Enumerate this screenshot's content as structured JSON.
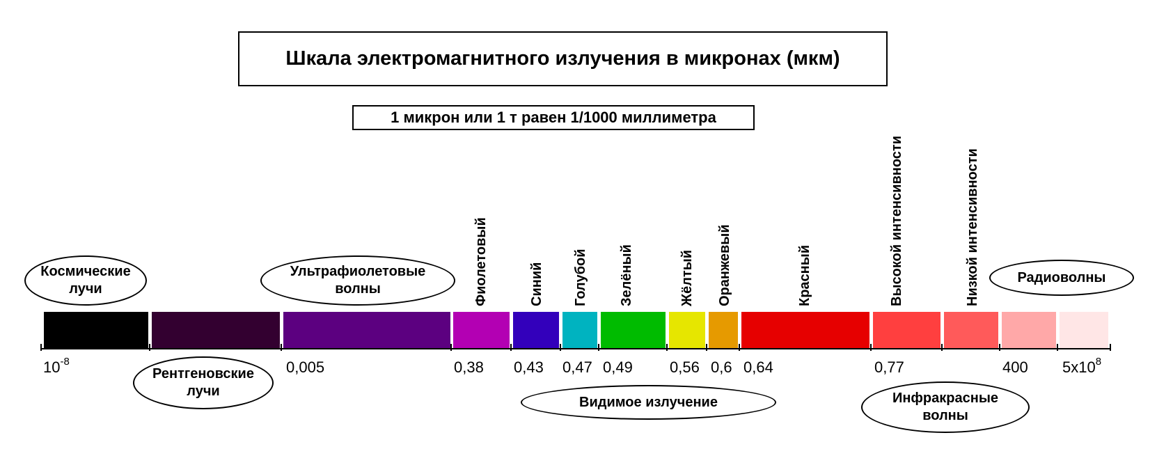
{
  "title": "Шкала электромагнитного излучения в микронах (мкм)",
  "subtitle": "1 микрон или 1 т равен 1/1000 миллиметра",
  "bands": [
    {
      "name": "cosmic",
      "color": "#000000"
    },
    {
      "name": "xray",
      "color": "#330030"
    },
    {
      "name": "uv",
      "color": "#5c0080"
    },
    {
      "name": "violet",
      "color": "#b300b3"
    },
    {
      "name": "blue",
      "color": "#3300bb"
    },
    {
      "name": "cyan",
      "color": "#00b3c0"
    },
    {
      "name": "green",
      "color": "#00bb00"
    },
    {
      "name": "yellow",
      "color": "#e6e600"
    },
    {
      "name": "orange",
      "color": "#e69a00"
    },
    {
      "name": "red",
      "color": "#e60000"
    },
    {
      "name": "ir-high",
      "color": "#ff3f3f"
    },
    {
      "name": "ir-low",
      "color": "#ff5a5a"
    },
    {
      "name": "radio-1",
      "color": "#ffa8a8"
    },
    {
      "name": "radio-2",
      "color": "#ffe6e6"
    }
  ],
  "scale": {
    "v1_base": "10",
    "v1_exp": "-8",
    "v2": "0,005",
    "v3": "0,38",
    "v4": "0,43",
    "v5": "0,47",
    "v6": "0,49",
    "v7": "0,56",
    "v8": "0,6",
    "v9": "0,64",
    "v10": "0,77",
    "v11": "400",
    "v12_base": "5x10",
    "v12_exp": "8"
  },
  "color_labels": {
    "violet": "Фиолетовый",
    "blue": "Синий",
    "cyan": "Голубой",
    "green": "Зелёный",
    "yellow": "Жёлтый",
    "orange": "Оранжевый",
    "red": "Красный",
    "ir_high": "Высокой интенсивности",
    "ir_low": "Низкой интенсивности"
  },
  "regions": {
    "cosmic_l1": "Космические",
    "cosmic_l2": "лучи",
    "xray_l1": "Рентгеновские",
    "xray_l2": "лучи",
    "uv_l1": "Ультрафиолетовые",
    "uv_l2": "волны",
    "visible": "Видимое излучение",
    "ir_l1": "Инфракрасные",
    "ir_l2": "волны",
    "radio": "Радиоволны"
  }
}
